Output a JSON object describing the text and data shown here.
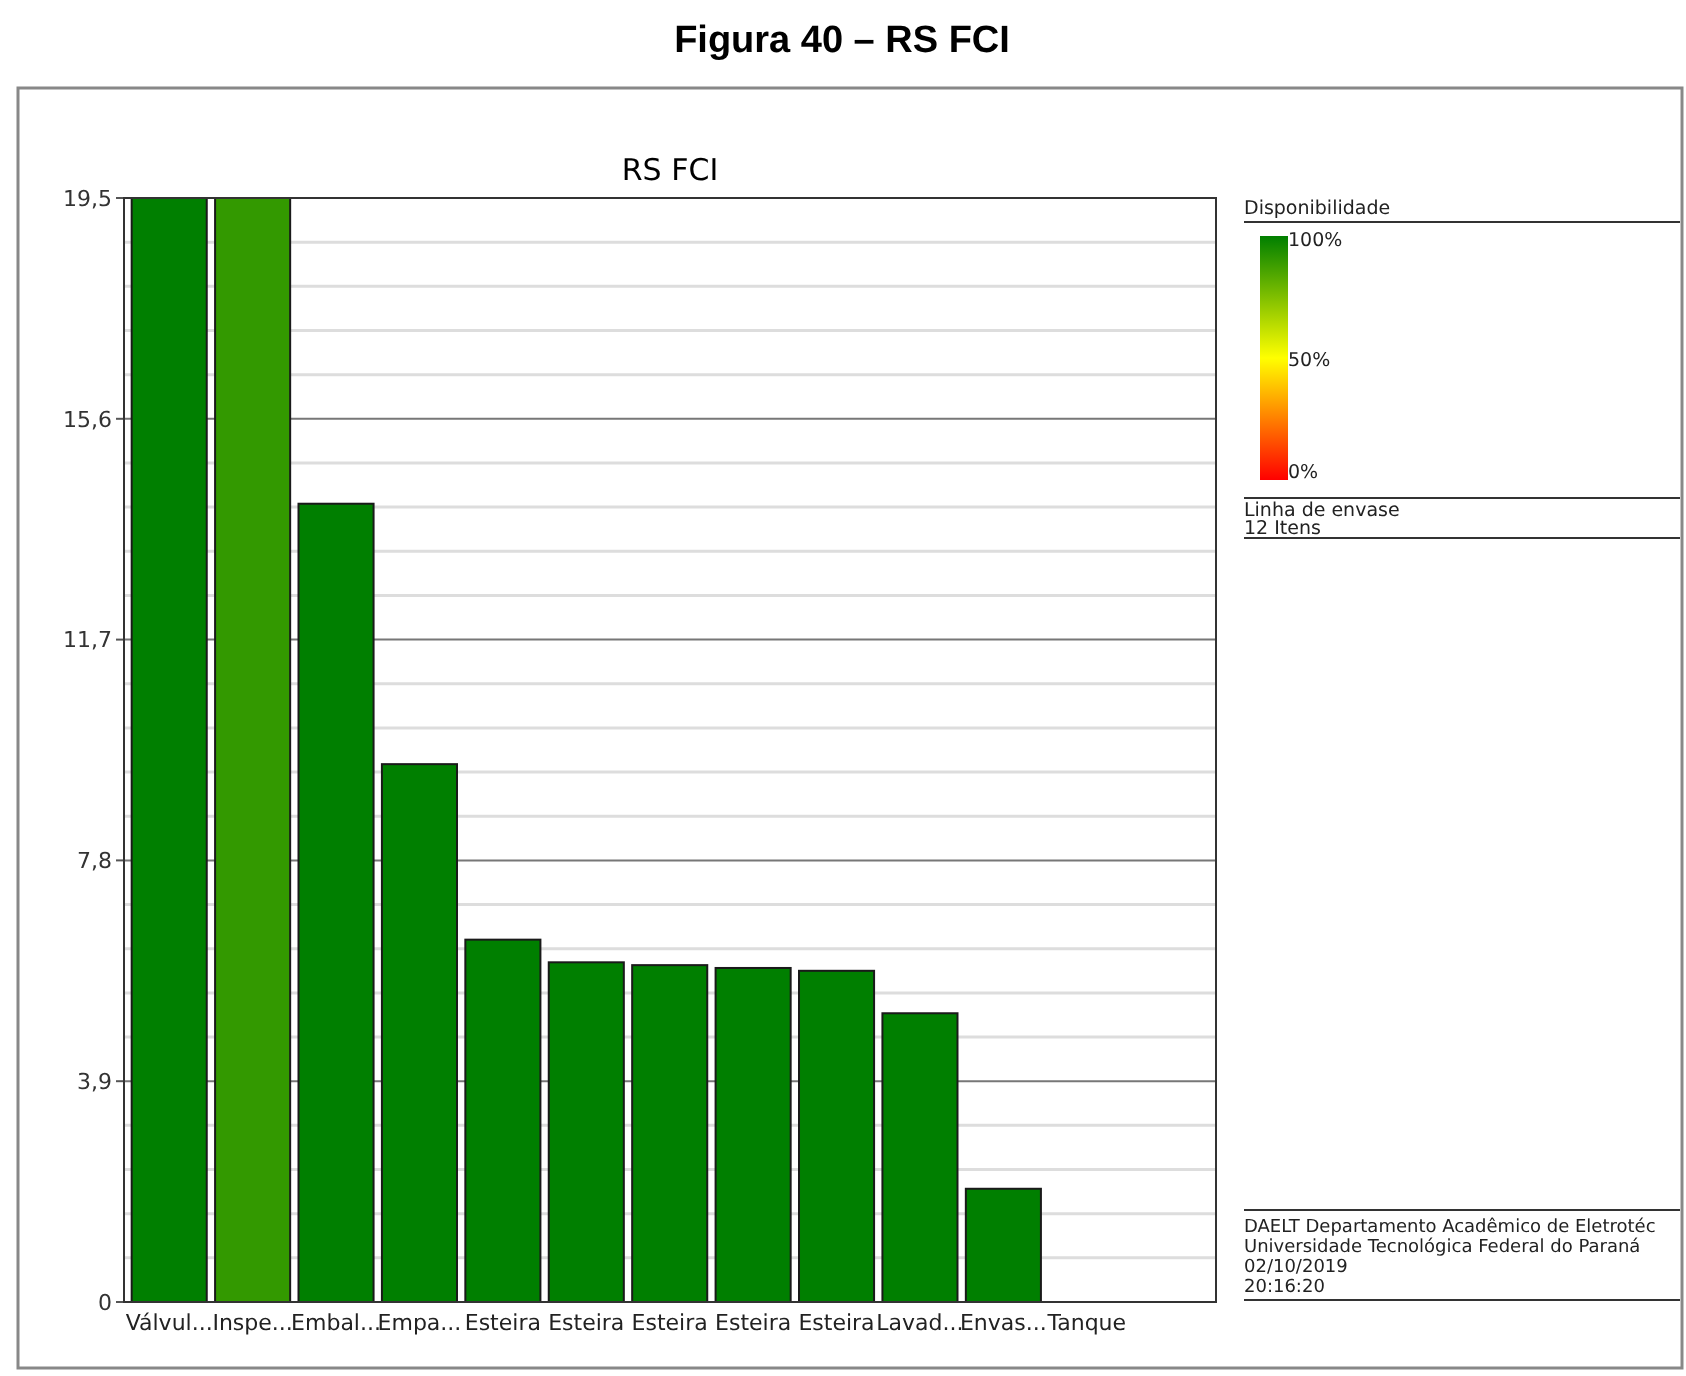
{
  "chart_data": {
    "type": "bar",
    "title": "Figura 40 – RS FCI",
    "subtitle": "RS FCI",
    "categories": [
      "Válvul...",
      "Inspe...",
      "Embal...",
      "Empa...",
      "Esteira",
      "Esteira",
      "Esteira",
      "Esteira",
      "Esteira",
      "Lavad...",
      "Envas...",
      "Tanque"
    ],
    "values": [
      19.5,
      19.5,
      14.1,
      9.5,
      6.4,
      6.0,
      5.95,
      5.9,
      5.85,
      5.1,
      2.0,
      0
    ],
    "colors": [
      "#007f00",
      "#339900",
      "#007f00",
      "#007f00",
      "#007f00",
      "#007f00",
      "#007f00",
      "#007f00",
      "#007f00",
      "#007f00",
      "#007f00",
      "#007f00"
    ],
    "ylim": [
      0,
      19.5
    ],
    "yticks": [
      0,
      {
        "value": 0.78,
        "label": null
      },
      {
        "value": 1.56,
        "label": null
      },
      {
        "value": 2.34,
        "label": null
      },
      {
        "value": 3.12,
        "label": null
      },
      {
        "value": 3.9,
        "label": "3,9"
      },
      {
        "value": 4.68,
        "label": null
      },
      {
        "value": 5.46,
        "label": null
      },
      {
        "value": 6.24,
        "label": null
      },
      {
        "value": 7.02,
        "label": null
      },
      {
        "value": 7.8,
        "label": "7,8"
      },
      {
        "value": 8.58,
        "label": null
      },
      {
        "value": 9.36,
        "label": null
      },
      {
        "value": 10.14,
        "label": null
      },
      {
        "value": 10.92,
        "label": null
      },
      {
        "value": 11.7,
        "label": "11,7"
      },
      {
        "value": 12.48,
        "label": null
      },
      {
        "value": 13.26,
        "label": null
      },
      {
        "value": 14.04,
        "label": null
      },
      {
        "value": 14.82,
        "label": null
      },
      {
        "value": 15.6,
        "label": "15,6"
      },
      {
        "value": 16.38,
        "label": null
      },
      {
        "value": 17.16,
        "label": null
      },
      {
        "value": 17.94,
        "label": null
      },
      {
        "value": 18.72,
        "label": null
      },
      {
        "value": 19.5,
        "label": "19,5"
      }
    ],
    "grid": "y",
    "clabel": "Disponibilidade",
    "clim": [
      0,
      100
    ],
    "cticks": [
      {
        "value": 0,
        "label": "0%"
      },
      {
        "value": 50,
        "label": "50%"
      },
      {
        "value": 100,
        "label": "100%"
      }
    ],
    "annotations": [
      "Linha de envase",
      "12 Itens",
      "DAELT Departamento Acadêmico de Eletrotéc",
      "Universidade Tecnológica Federal do Paraná",
      "02/10/2019",
      "20:16:20"
    ]
  }
}
